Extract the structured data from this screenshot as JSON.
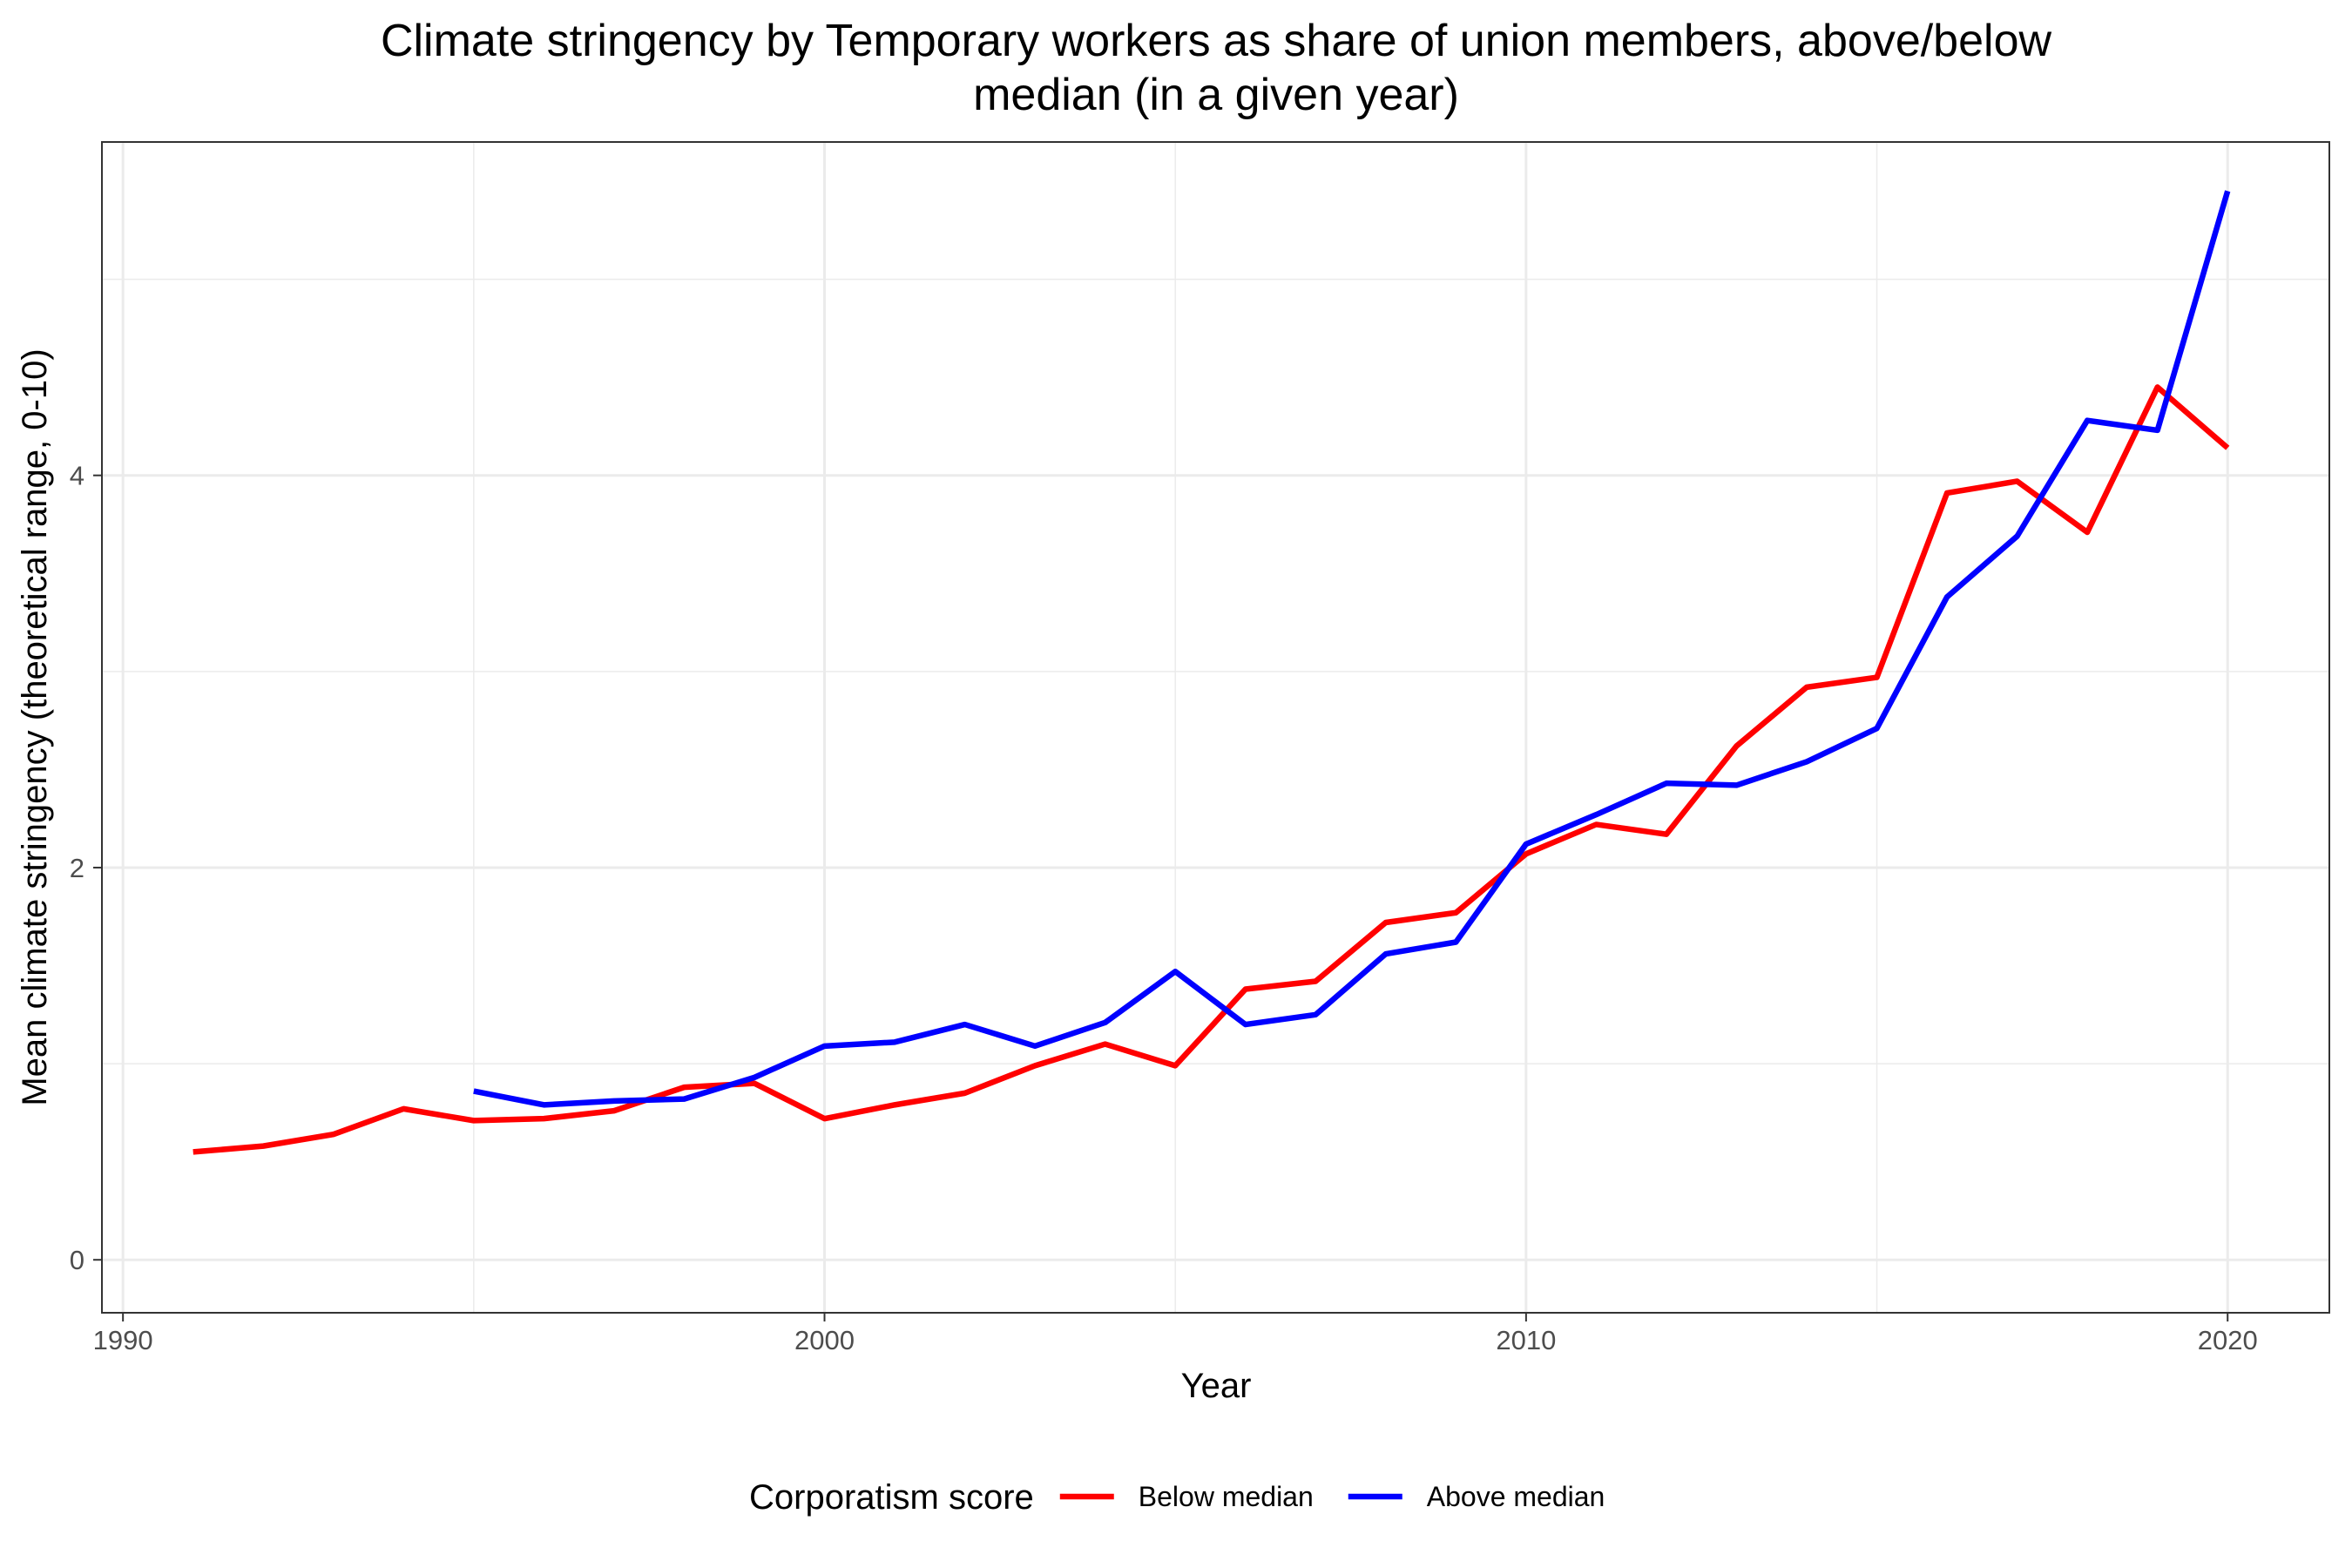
{
  "chart_data": {
    "type": "line",
    "title_lines": [
      "Climate stringency by Temporary workers as share of union members, above/below",
      "median (in a given year)"
    ],
    "xlabel": "Year",
    "ylabel": "Mean climate stringency (theoretical range, 0-10)",
    "xlim": [
      1989.7,
      2021.45
    ],
    "ylim": [
      -0.27,
      5.7
    ],
    "x_ticks": [
      1990,
      2000,
      2010,
      2020
    ],
    "x_tick_labels": [
      "1990",
      "2000",
      "2010",
      "2020"
    ],
    "y_ticks": [
      0,
      2,
      4
    ],
    "y_tick_labels": [
      "0",
      "2",
      "4"
    ],
    "x_minor": [
      1995,
      2005,
      2015
    ],
    "y_minor": [
      1,
      3,
      5
    ],
    "grid": true,
    "legend": {
      "title": "Corporatism score",
      "position": "bottom"
    },
    "series": [
      {
        "name": "Below median",
        "color": "#ff0000",
        "x": [
          1991,
          1992,
          1993,
          1994,
          1995,
          1996,
          1997,
          1998,
          1999,
          2000,
          2001,
          2002,
          2003,
          2004,
          2005,
          2006,
          2007,
          2008,
          2009,
          2010,
          2011,
          2012,
          2013,
          2014,
          2015,
          2016,
          2017,
          2018,
          2019,
          2020
        ],
        "y": [
          0.55,
          0.58,
          0.64,
          0.77,
          0.71,
          0.72,
          0.76,
          0.88,
          0.9,
          0.72,
          0.79,
          0.85,
          0.99,
          1.1,
          0.99,
          1.38,
          1.42,
          1.72,
          1.77,
          2.07,
          2.22,
          2.17,
          2.62,
          2.92,
          2.97,
          3.91,
          3.97,
          3.71,
          4.45,
          4.14
        ]
      },
      {
        "name": "Above median",
        "color": "#0000ff",
        "x": [
          1995,
          1996,
          1997,
          1998,
          1999,
          2000,
          2001,
          2002,
          2003,
          2004,
          2005,
          2006,
          2007,
          2008,
          2009,
          2010,
          2011,
          2012,
          2013,
          2014,
          2015,
          2016,
          2017,
          2018,
          2019,
          2020
        ],
        "y": [
          0.86,
          0.79,
          0.81,
          0.82,
          0.93,
          1.09,
          1.11,
          1.2,
          1.09,
          1.21,
          1.47,
          1.2,
          1.25,
          1.56,
          1.62,
          2.12,
          2.27,
          2.43,
          2.42,
          2.54,
          2.71,
          3.38,
          3.69,
          4.28,
          4.23,
          5.45
        ]
      }
    ]
  }
}
